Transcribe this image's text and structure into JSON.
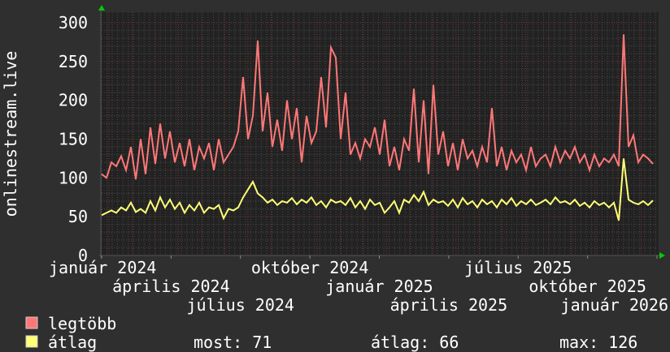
{
  "chart_data": {
    "type": "line",
    "ylabel": "onlinestream.live",
    "ylim": [
      0,
      300
    ],
    "yticks": [
      "0",
      "50",
      "100",
      "150",
      "200",
      "250",
      "300"
    ],
    "xtick_labels": [
      "január 2024",
      "április 2024",
      "július 2024",
      "október 2024",
      "január 2025",
      "április 2025",
      "július 2025",
      "október 2025",
      "január 2026"
    ],
    "grid": true,
    "legend_placement": "bottom-left",
    "series": [
      {
        "name": "legtöbb",
        "color": "#ff7777",
        "values": [
          105,
          100,
          120,
          115,
          128,
          110,
          140,
          98,
          150,
          105,
          165,
          118,
          170,
          125,
          160,
          120,
          145,
          115,
          150,
          110,
          140,
          125,
          145,
          110,
          150,
          120,
          130,
          140,
          160,
          230,
          150,
          180,
          277,
          160,
          210,
          140,
          175,
          135,
          200,
          150,
          190,
          120,
          180,
          145,
          160,
          230,
          165,
          268,
          255,
          150,
          210,
          130,
          145,
          125,
          150,
          140,
          165,
          130,
          175,
          115,
          140,
          110,
          150,
          135,
          215,
          120,
          200,
          105,
          220,
          130,
          160,
          115,
          145,
          110,
          150,
          125,
          135,
          115,
          140,
          120,
          190,
          115,
          140,
          110,
          135,
          120,
          130,
          110,
          140,
          115,
          125,
          130,
          115,
          140,
          120,
          135,
          125,
          140,
          120,
          130,
          110,
          130,
          115,
          125,
          120,
          130,
          115,
          285,
          140,
          155,
          120,
          130,
          125,
          118
        ]
      },
      {
        "name": "átlag",
        "color": "#ffff77",
        "values": [
          52,
          55,
          58,
          55,
          62,
          58,
          68,
          56,
          60,
          55,
          70,
          58,
          75,
          62,
          72,
          60,
          68,
          55,
          65,
          58,
          68,
          55,
          62,
          60,
          65,
          48,
          60,
          58,
          62,
          75,
          85,
          95,
          80,
          75,
          68,
          72,
          65,
          70,
          68,
          74,
          66,
          72,
          68,
          75,
          65,
          70,
          62,
          72,
          68,
          70,
          65,
          74,
          62,
          70,
          60,
          72,
          65,
          68,
          55,
          62,
          70,
          55,
          72,
          68,
          78,
          70,
          82,
          65,
          72,
          68,
          70,
          64,
          72,
          62,
          74,
          66,
          70,
          62,
          72,
          66,
          70,
          62,
          72,
          66,
          74,
          64,
          70,
          66,
          72,
          65,
          68,
          72,
          66,
          75,
          68,
          70,
          66,
          72,
          64,
          68,
          62,
          70,
          65,
          68,
          62,
          68,
          45,
          125,
          72,
          68,
          66,
          70,
          65,
          71
        ]
      }
    ]
  },
  "legend": {
    "items": [
      {
        "label": "legtöbb",
        "color": "#ff7777"
      },
      {
        "label": "átlag",
        "color": "#ffff77"
      }
    ],
    "stats": {
      "most": "most: 71",
      "atlag": "átlag: 66",
      "max": "max: 126"
    }
  },
  "colors": {
    "background": "#2f2f2f",
    "plot": "#222222",
    "arrow": "#00cc00"
  }
}
